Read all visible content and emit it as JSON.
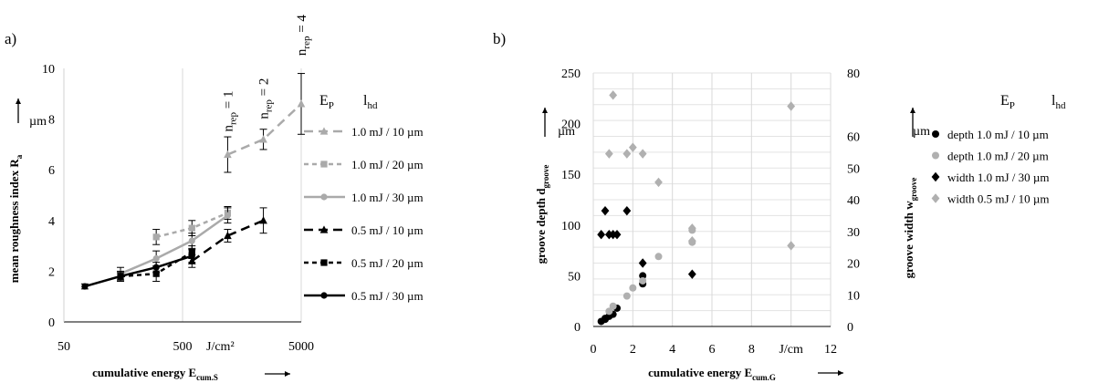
{
  "panel_a": {
    "panel_label": "a)",
    "legend_header": {
      "ep": "E",
      "ep_sub": "P",
      "lhd": "l",
      "lhd_sub": "hd"
    },
    "ylabel_unit": "µm",
    "xlabel_unit": "J/cm²",
    "annotations": [
      {
        "prefix": "n",
        "sub": "rep",
        "suffix": " = 1",
        "x": 1200,
        "y": 7.5
      },
      {
        "prefix": "n",
        "sub": "rep",
        "suffix": " = 2",
        "x": 2400,
        "y": 8.0
      },
      {
        "prefix": "n",
        "sub": "rep",
        "suffix": " = 4",
        "x": 5000,
        "y": 10.5
      }
    ]
  },
  "panel_b": {
    "panel_label": "b)",
    "legend_header": {
      "ep": "E",
      "ep_sub": "P",
      "lhd": "l",
      "lhd_sub": "hd"
    },
    "ylabel_unit": "µm",
    "y2label_unit": "µm",
    "xlabel_unit": "J/cm"
  },
  "chart_data": [
    {
      "type": "line",
      "title": "",
      "xscale": "log",
      "xlim": [
        50,
        5000
      ],
      "ylim": [
        0,
        10
      ],
      "xticks": [
        50,
        500,
        5000
      ],
      "xtick_labels": [
        "50",
        "500",
        "5000"
      ],
      "yticks": [
        0,
        2,
        4,
        6,
        8,
        10
      ],
      "ytick_labels": [
        "0",
        "2",
        "4",
        "6",
        "8",
        "10"
      ],
      "xlabel": {
        "main": "cumulative energy E",
        "sub": "cum.S"
      },
      "ylabel": {
        "main": "mean roughness index R",
        "sub": "a"
      },
      "grid": "x-major",
      "legend_position": "right",
      "series": [
        {
          "name": "1.0 mJ / 10 µm",
          "color": "#aaaaaa",
          "dash": "10,6",
          "marker": "triangle",
          "points": [
            [
              1200,
              6.6
            ],
            [
              2400,
              7.2
            ],
            [
              5000,
              8.6
            ]
          ],
          "errors": [
            0.7,
            0.4,
            1.2
          ]
        },
        {
          "name": "1.0 mJ / 20 µm",
          "color": "#aaaaaa",
          "dash": "5,4",
          "marker": "square",
          "points": [
            [
              300,
              3.35
            ],
            [
              600,
              3.7
            ],
            [
              1200,
              4.3
            ]
          ],
          "errors": [
            0.3,
            0.3,
            0.25
          ]
        },
        {
          "name": "1.0 mJ / 30 µm",
          "color": "#aaaaaa",
          "dash": "",
          "marker": "circle",
          "points": [
            [
              150,
              1.9
            ],
            [
              300,
              2.5
            ],
            [
              600,
              3.2
            ],
            [
              1200,
              4.2
            ]
          ],
          "errors": [
            0.25,
            0.3,
            0.3,
            0.3
          ]
        },
        {
          "name": "0.5 mJ / 10 µm",
          "color": "#000000",
          "dash": "10,6",
          "marker": "triangle",
          "points": [
            [
              600,
              2.4
            ],
            [
              1200,
              3.4
            ],
            [
              2400,
              4.0
            ]
          ],
          "errors": [
            0.25,
            0.25,
            0.5
          ]
        },
        {
          "name": "0.5 mJ / 20 µm",
          "color": "#000000",
          "dash": "5,4",
          "marker": "square",
          "points": [
            [
              150,
              1.8
            ],
            [
              300,
              1.9
            ],
            [
              600,
              2.75
            ]
          ],
          "errors": [
            0.2,
            0.3,
            0.25
          ]
        },
        {
          "name": "0.5 mJ / 30 µm",
          "color": "#000000",
          "dash": "",
          "marker": "circle",
          "points": [
            [
              75,
              1.4
            ],
            [
              150,
              1.8
            ],
            [
              300,
              2.15
            ],
            [
              600,
              2.6
            ]
          ],
          "errors": [
            0.1,
            0.15,
            0.2,
            0.25
          ]
        }
      ]
    },
    {
      "type": "scatter",
      "title": "",
      "xlim": [
        0,
        12
      ],
      "ylim": [
        0,
        250
      ],
      "y2lim": [
        0,
        80
      ],
      "xticks": [
        0,
        2,
        4,
        6,
        8,
        10,
        12
      ],
      "xtick_labels": [
        "0",
        "2",
        "4",
        "6",
        "",
        "",
        "12"
      ],
      "x_text_labels": [
        {
          "value": 8,
          "text": "8"
        },
        {
          "value": 10,
          "text": "J/cm"
        }
      ],
      "yticks": [
        0,
        50,
        100,
        150,
        200,
        250
      ],
      "ytick_labels": [
        "0",
        "50",
        "100",
        "150",
        "200",
        "250"
      ],
      "y2ticks": [
        0,
        10,
        20,
        30,
        40,
        50,
        60,
        70,
        80
      ],
      "y2tick_labels": [
        "0",
        "10",
        "20",
        "30",
        "40",
        "50",
        "60",
        "",
        "80"
      ],
      "xlabel": {
        "main": "cumulative energy E",
        "sub": "cum.G"
      },
      "ylabel": {
        "main": "groove depth d",
        "sub": "groove"
      },
      "y2label": {
        "main": "groove width w",
        "sub": "groove"
      },
      "grid": "both",
      "legend_position": "right",
      "series": [
        {
          "name": "depth 1.0 mJ / 10 µm",
          "color": "#000000",
          "marker": "circle",
          "axis": "left",
          "points": [
            [
              0.4,
              5
            ],
            [
              0.6,
              8
            ],
            [
              0.6,
              7
            ],
            [
              0.8,
              10
            ],
            [
              1.0,
              12
            ],
            [
              1.2,
              18
            ],
            [
              2.5,
              42
            ],
            [
              2.5,
              50
            ]
          ]
        },
        {
          "name": "depth 1.0 mJ / 20 µm",
          "color": "#b0b0b0",
          "marker": "circle",
          "axis": "left",
          "points": [
            [
              0.8,
              15
            ],
            [
              1.0,
              20
            ],
            [
              1.7,
              30
            ],
            [
              2.0,
              38
            ],
            [
              2.5,
              45
            ],
            [
              3.3,
              69
            ],
            [
              5.0,
              95
            ],
            [
              5.0,
              83
            ]
          ]
        },
        {
          "name": "width 1.0 mJ / 30 µm",
          "color": "#000000",
          "marker": "diamond",
          "axis": "right",
          "points": [
            [
              0.4,
              29
            ],
            [
              0.6,
              36.5
            ],
            [
              0.8,
              29
            ],
            [
              1.0,
              29
            ],
            [
              1.2,
              29
            ],
            [
              1.7,
              36.5
            ],
            [
              2.5,
              20
            ],
            [
              5.0,
              16.5
            ]
          ]
        },
        {
          "name": "width 0.5 mJ / 10 µm",
          "color": "#b0b0b0",
          "marker": "diamond",
          "axis": "right",
          "points": [
            [
              0.8,
              54.5
            ],
            [
              1.0,
              73
            ],
            [
              1.7,
              54.5
            ],
            [
              2.0,
              56.5
            ],
            [
              2.5,
              54.5
            ],
            [
              3.3,
              45.5
            ],
            [
              5.0,
              31
            ],
            [
              5.0,
              27
            ],
            [
              10.0,
              69.5
            ],
            [
              10.0,
              25.5
            ]
          ]
        }
      ]
    }
  ]
}
